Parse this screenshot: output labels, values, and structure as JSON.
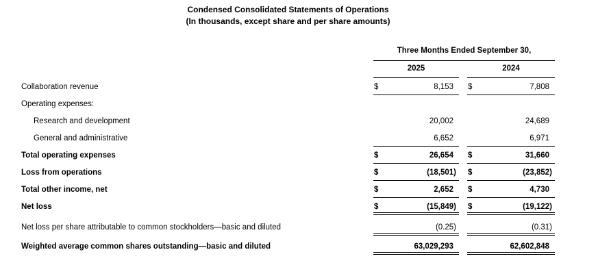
{
  "title": {
    "line1": "Condensed Consolidated Statements of Operations",
    "line2": "(In thousands, except share and per share amounts)"
  },
  "currency_symbol": "$",
  "table": {
    "period_header": "Three Months Ended September 30,",
    "columns": [
      "2025",
      "2024"
    ],
    "rows": [
      {
        "label": "Collaboration revenue",
        "values": [
          "8,153",
          "7,808"
        ]
      },
      {
        "label": "Operating expenses:",
        "values": [
          "",
          ""
        ]
      },
      {
        "label": "Research and development",
        "values": [
          "20,002",
          "24,689"
        ]
      },
      {
        "label": "General and administrative",
        "values": [
          "6,652",
          "6,971"
        ]
      },
      {
        "label": "Total operating expenses",
        "values": [
          "26,654",
          "31,660"
        ]
      },
      {
        "label": "Loss from operations",
        "values": [
          "(18,501)",
          "(23,852)"
        ]
      },
      {
        "label": "Total other income, net",
        "values": [
          "2,652",
          "4,730"
        ]
      },
      {
        "label": "Net loss",
        "values": [
          "(15,849)",
          "(19,122)"
        ]
      },
      {
        "label": "Net loss per share attributable to common stockholders—basic and diluted",
        "values": [
          "(0.25)",
          "(0.31)"
        ]
      },
      {
        "label": "Weighted average common shares outstanding—basic and diluted",
        "values": [
          "63,029,293",
          "62,602,848"
        ]
      }
    ]
  }
}
